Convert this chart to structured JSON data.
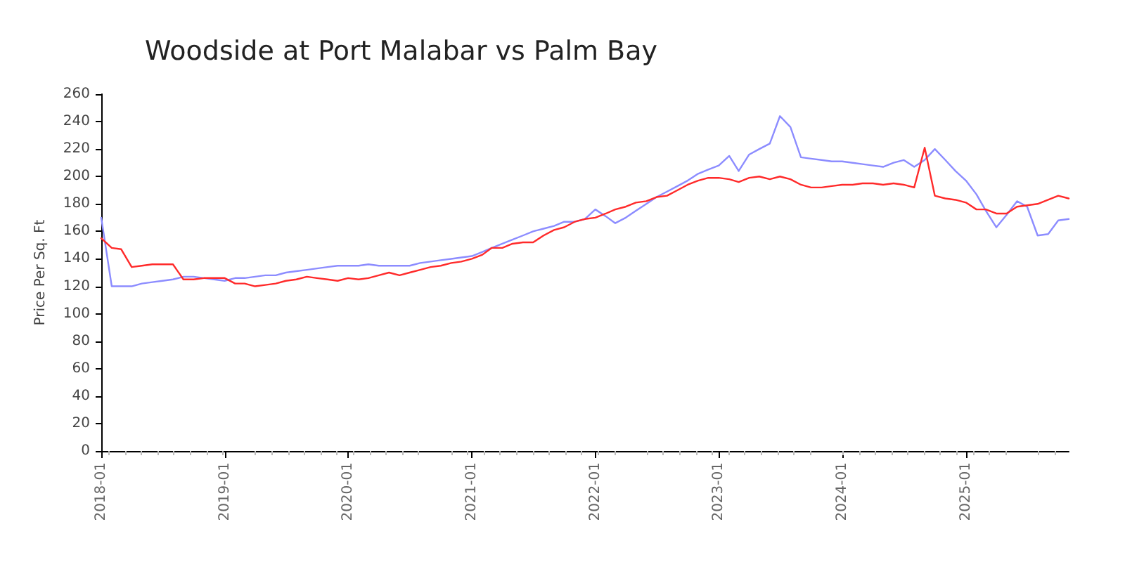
{
  "chart_data": {
    "type": "line",
    "title": "Woodside at Port Malabar vs Palm Bay",
    "ylabel": "Price Per Sq. Ft",
    "x": [
      "2018-01",
      "2018-02",
      "2018-03",
      "2018-04",
      "2018-05",
      "2018-06",
      "2018-07",
      "2018-08",
      "2018-09",
      "2018-10",
      "2018-11",
      "2018-12",
      "2019-01",
      "2019-02",
      "2019-03",
      "2019-04",
      "2019-05",
      "2019-06",
      "2019-07",
      "2019-08",
      "2019-09",
      "2019-10",
      "2019-11",
      "2019-12",
      "2020-01",
      "2020-02",
      "2020-03",
      "2020-04",
      "2020-05",
      "2020-06",
      "2020-07",
      "2020-08",
      "2020-09",
      "2020-10",
      "2020-11",
      "2020-12",
      "2021-01",
      "2021-02",
      "2021-03",
      "2021-04",
      "2021-05",
      "2021-06",
      "2021-07",
      "2021-08",
      "2021-09",
      "2021-10",
      "2021-11",
      "2021-12",
      "2022-01",
      "2022-02",
      "2022-03",
      "2022-04",
      "2022-05",
      "2022-06",
      "2022-07",
      "2022-08",
      "2022-09",
      "2022-10",
      "2022-11",
      "2022-12",
      "2023-01",
      "2023-02",
      "2023-03",
      "2023-04",
      "2023-05",
      "2023-06",
      "2023-07",
      "2023-08",
      "2023-09",
      "2023-10",
      "2023-11",
      "2023-12",
      "2024-01",
      "2024-02",
      "2024-03",
      "2024-04",
      "2024-05",
      "2024-06",
      "2024-07",
      "2024-08",
      "2024-09",
      "2024-10",
      "2024-11",
      "2024-12",
      "2025-01",
      "2025-02",
      "2025-03",
      "2025-04",
      "2025-05",
      "2025-06",
      "2025-07",
      "2025-08",
      "2025-09",
      "2025-10",
      "2025-11"
    ],
    "series": [
      {
        "color": "#8c8cff",
        "values": [
          170,
          120,
          120,
          120,
          122,
          123,
          124,
          125,
          127,
          127,
          126,
          125,
          124,
          126,
          126,
          127,
          128,
          128,
          130,
          131,
          132,
          133,
          134,
          135,
          135,
          135,
          136,
          135,
          135,
          135,
          135,
          137,
          138,
          139,
          140,
          141,
          142,
          145,
          148,
          151,
          154,
          157,
          160,
          162,
          164,
          167,
          167,
          169,
          176,
          171,
          166,
          170,
          175,
          180,
          185,
          189,
          193,
          197,
          202,
          205,
          208,
          215,
          204,
          216,
          220,
          224,
          244,
          236,
          214,
          213,
          212,
          211,
          211,
          210,
          209,
          208,
          207,
          210,
          212,
          207,
          212,
          220,
          212,
          204,
          197,
          187,
          175,
          163,
          172,
          182,
          178,
          157,
          158,
          168,
          169
        ]
      },
      {
        "color": "#ff2a2a",
        "values": [
          155,
          148,
          147,
          134,
          135,
          136,
          136,
          136,
          125,
          125,
          126,
          126,
          126,
          122,
          122,
          120,
          121,
          122,
          124,
          125,
          127,
          126,
          125,
          124,
          126,
          125,
          126,
          128,
          130,
          128,
          130,
          132,
          134,
          135,
          137,
          138,
          140,
          143,
          148,
          148,
          151,
          152,
          152,
          157,
          161,
          163,
          167,
          169,
          170,
          173,
          176,
          178,
          181,
          182,
          185,
          186,
          190,
          194,
          197,
          199,
          199,
          198,
          196,
          199,
          200,
          198,
          200,
          198,
          194,
          192,
          192,
          193,
          194,
          194,
          195,
          195,
          194,
          195,
          194,
          192,
          221,
          186,
          184,
          183,
          181,
          176,
          176,
          173,
          173,
          178,
          179,
          180,
          183,
          186,
          184
        ]
      }
    ],
    "xlim": [
      "2018-01",
      "2025-11"
    ],
    "xticks": [
      "2018-01",
      "2019-01",
      "2020-01",
      "2021-01",
      "2022-01",
      "2023-01",
      "2024-01",
      "2025-01"
    ],
    "ylim": [
      0,
      260
    ],
    "yticks": [
      0,
      20,
      40,
      60,
      80,
      100,
      120,
      140,
      160,
      180,
      200,
      220,
      240,
      260
    ],
    "grid": false,
    "marker": "none",
    "line_style": "solid"
  }
}
